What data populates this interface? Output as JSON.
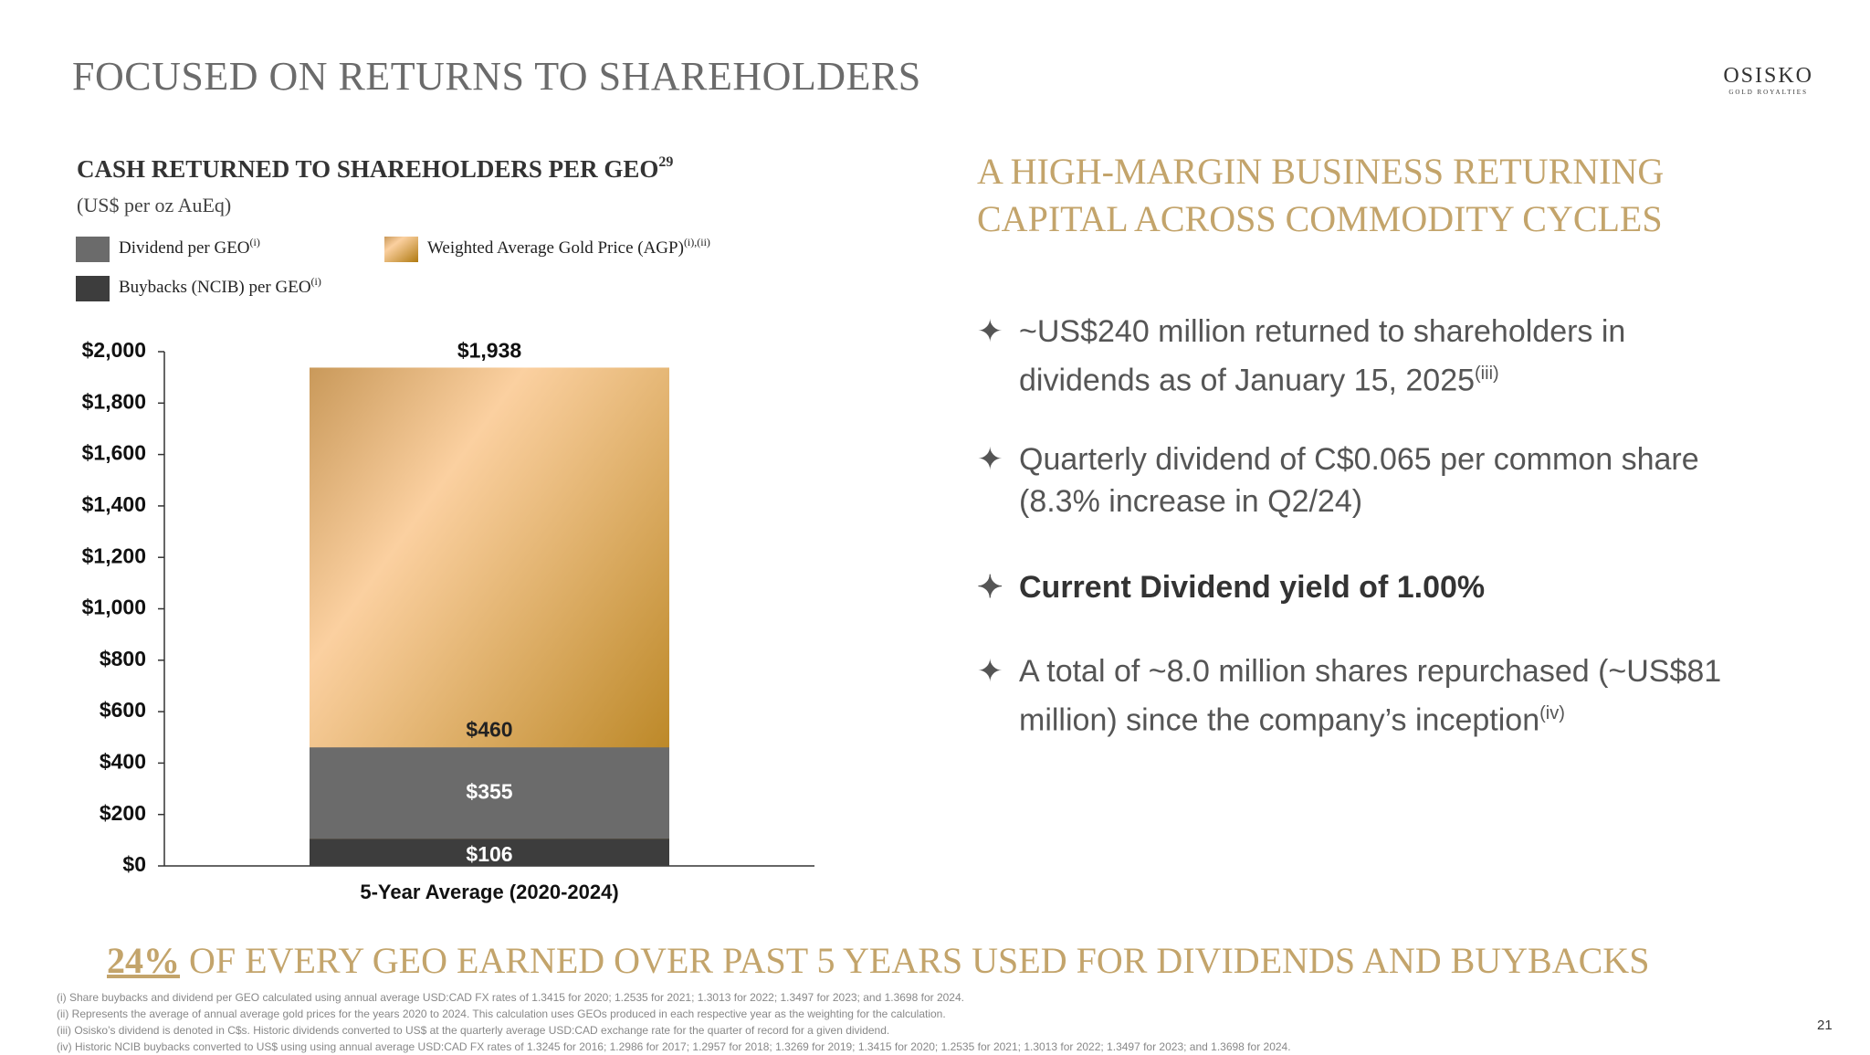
{
  "header": {
    "title": "FOCUSED ON RETURNS TO SHAREHOLDERS",
    "logo": "OSISKO",
    "logo_sub": "GOLD ROYALTIES"
  },
  "chart_data": {
    "type": "bar",
    "title": "CASH RETURNED TO SHAREHOLDERS PER GEO",
    "title_note": "29",
    "subtitle": "(US$ per oz AuEq)",
    "categories": [
      "5-Year Average (2020-2024)"
    ],
    "series": [
      {
        "name": "Buybacks (NCIB) per GEO",
        "note": "(i)",
        "color": "#3d3d3d",
        "values": [
          106
        ],
        "value_labels": [
          "$106"
        ]
      },
      {
        "name": "Dividend per GEO",
        "note": "(i)",
        "color": "#6b6b6b",
        "values": [
          355
        ],
        "value_labels": [
          "$355"
        ]
      },
      {
        "name": "Weighted Average Gold Price (AGP)",
        "note": "(i),(ii)",
        "color": "#d9a660",
        "values": [
          1938
        ],
        "value_labels": [
          "$1,938"
        ]
      }
    ],
    "annotations": [
      {
        "label": "$460",
        "value": 460
      }
    ],
    "ylim": [
      0,
      2000
    ],
    "yticks": [
      {
        "value": 0,
        "label": "$0"
      },
      {
        "value": 200,
        "label": "$200"
      },
      {
        "value": 400,
        "label": "$400"
      },
      {
        "value": 600,
        "label": "$600"
      },
      {
        "value": 800,
        "label": "$800"
      },
      {
        "value": 1000,
        "label": "$1,000"
      },
      {
        "value": 1200,
        "label": "$1,200"
      },
      {
        "value": 1400,
        "label": "$1,400"
      },
      {
        "value": 1600,
        "label": "$1,600"
      },
      {
        "value": 1800,
        "label": "$1,800"
      },
      {
        "value": 2000,
        "label": "$2,000"
      }
    ],
    "grid": false
  },
  "right": {
    "heading": [
      "A HIGH-MARGIN BUSINESS RETURNING",
      "CAPITAL ACROSS COMMODITY CYCLES"
    ],
    "bullets": [
      {
        "text": "~US$240 million returned to shareholders in dividends as of January 15, 2025",
        "note": "(iii)"
      },
      {
        "text": "Quarterly dividend of C$0.065 per common share (8.3% increase in Q2/24)"
      },
      {
        "text": "Current Dividend yield of 1.00%"
      },
      {
        "text": "A total of ~8.0 million shares repurchased (~US$81 million) since the company’s inception",
        "note": "(iv)"
      }
    ]
  },
  "banner": {
    "highlight": "24%",
    "text": " OF EVERY GEO EARNED OVER PAST 5 YEARS USED FOR DIVIDENDS AND BUYBACKS"
  },
  "footnotes": [
    "(i) Share buybacks and dividend per GEO calculated using annual average USD:CAD FX rates of 1.3415 for 2020; 1.2535 for 2021; 1.3013 for 2022; 1.3497 for 2023; and 1.3698 for 2024.",
    "(ii) Represents the average of annual average gold prices for the years 2020 to 2024. This calculation uses GEOs produced in each respective year as the weighting for the calculation.",
    "(iii) Osisko’s dividend is denoted in C$s. Historic dividends converted to US$ at the quarterly average USD:CAD exchange rate for the quarter of record for a given dividend.",
    "(iv) Historic NCIB buybacks converted to US$ using using annual average USD:CAD FX rates of 1.3245 for 2016; 1.2986 for 2017; 1.2957 for 2018; 1.3269 for 2019; 1.3415 for 2020; 1.2535 for 2021; 1.3013 for 2022; 1.3497 for 2023; and 1.3698 for 2024."
  ],
  "page_number": "21"
}
